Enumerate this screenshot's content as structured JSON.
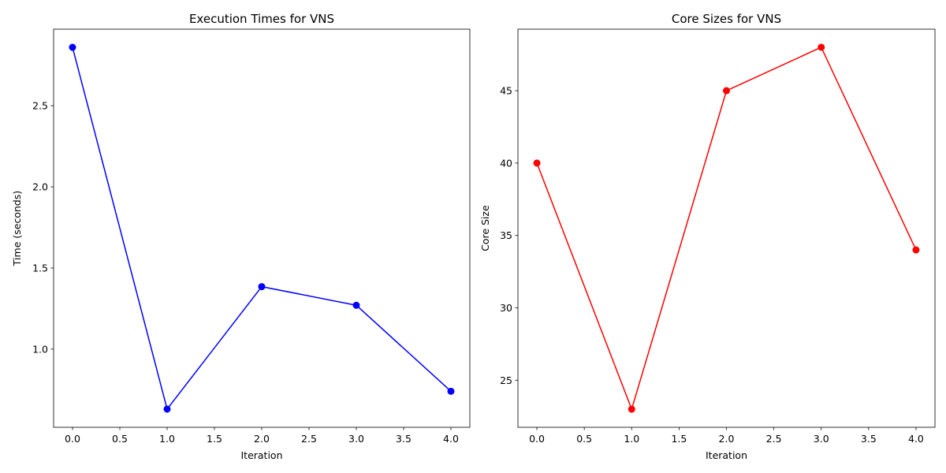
{
  "chart_data": [
    {
      "type": "line",
      "title": "Execution Times for VNS",
      "xlabel": "Iteration",
      "ylabel": "Time (seconds)",
      "x": [
        0,
        1,
        2,
        3,
        4
      ],
      "series": [
        {
          "values": [
            2.86,
            0.63,
            1.385,
            1.27,
            0.74
          ],
          "color": "#0000ff",
          "marker": "circle"
        }
      ],
      "xlim": [
        -0.2,
        4.2
      ],
      "ylim": [
        0.518,
        2.972
      ],
      "xticks": [
        0,
        0.5,
        1,
        1.5,
        2,
        2.5,
        3,
        3.5,
        4
      ],
      "xtick_labels": [
        "0.0",
        "0.5",
        "1.0",
        "1.5",
        "2.0",
        "2.5",
        "3.0",
        "3.5",
        "4.0"
      ],
      "yticks": [
        1.0,
        1.5,
        2.0,
        2.5
      ],
      "ytick_labels": [
        "1.0",
        "1.5",
        "2.0",
        "2.5"
      ],
      "grid": false,
      "legend": "none"
    },
    {
      "type": "line",
      "title": "Core Sizes for VNS",
      "xlabel": "Iteration",
      "ylabel": "Core Size",
      "x": [
        0,
        1,
        2,
        3,
        4
      ],
      "series": [
        {
          "values": [
            40,
            23,
            45,
            48,
            34
          ],
          "color": "#ff0000",
          "marker": "circle"
        }
      ],
      "xlim": [
        -0.2,
        4.2
      ],
      "ylim": [
        21.75,
        49.25
      ],
      "xticks": [
        0,
        0.5,
        1,
        1.5,
        2,
        2.5,
        3,
        3.5,
        4
      ],
      "xtick_labels": [
        "0.0",
        "0.5",
        "1.0",
        "1.5",
        "2.0",
        "2.5",
        "3.0",
        "3.5",
        "4.0"
      ],
      "yticks": [
        25,
        30,
        35,
        40,
        45
      ],
      "ytick_labels": [
        "25",
        "30",
        "35",
        "40",
        "45"
      ],
      "grid": false,
      "legend": "none"
    }
  ]
}
